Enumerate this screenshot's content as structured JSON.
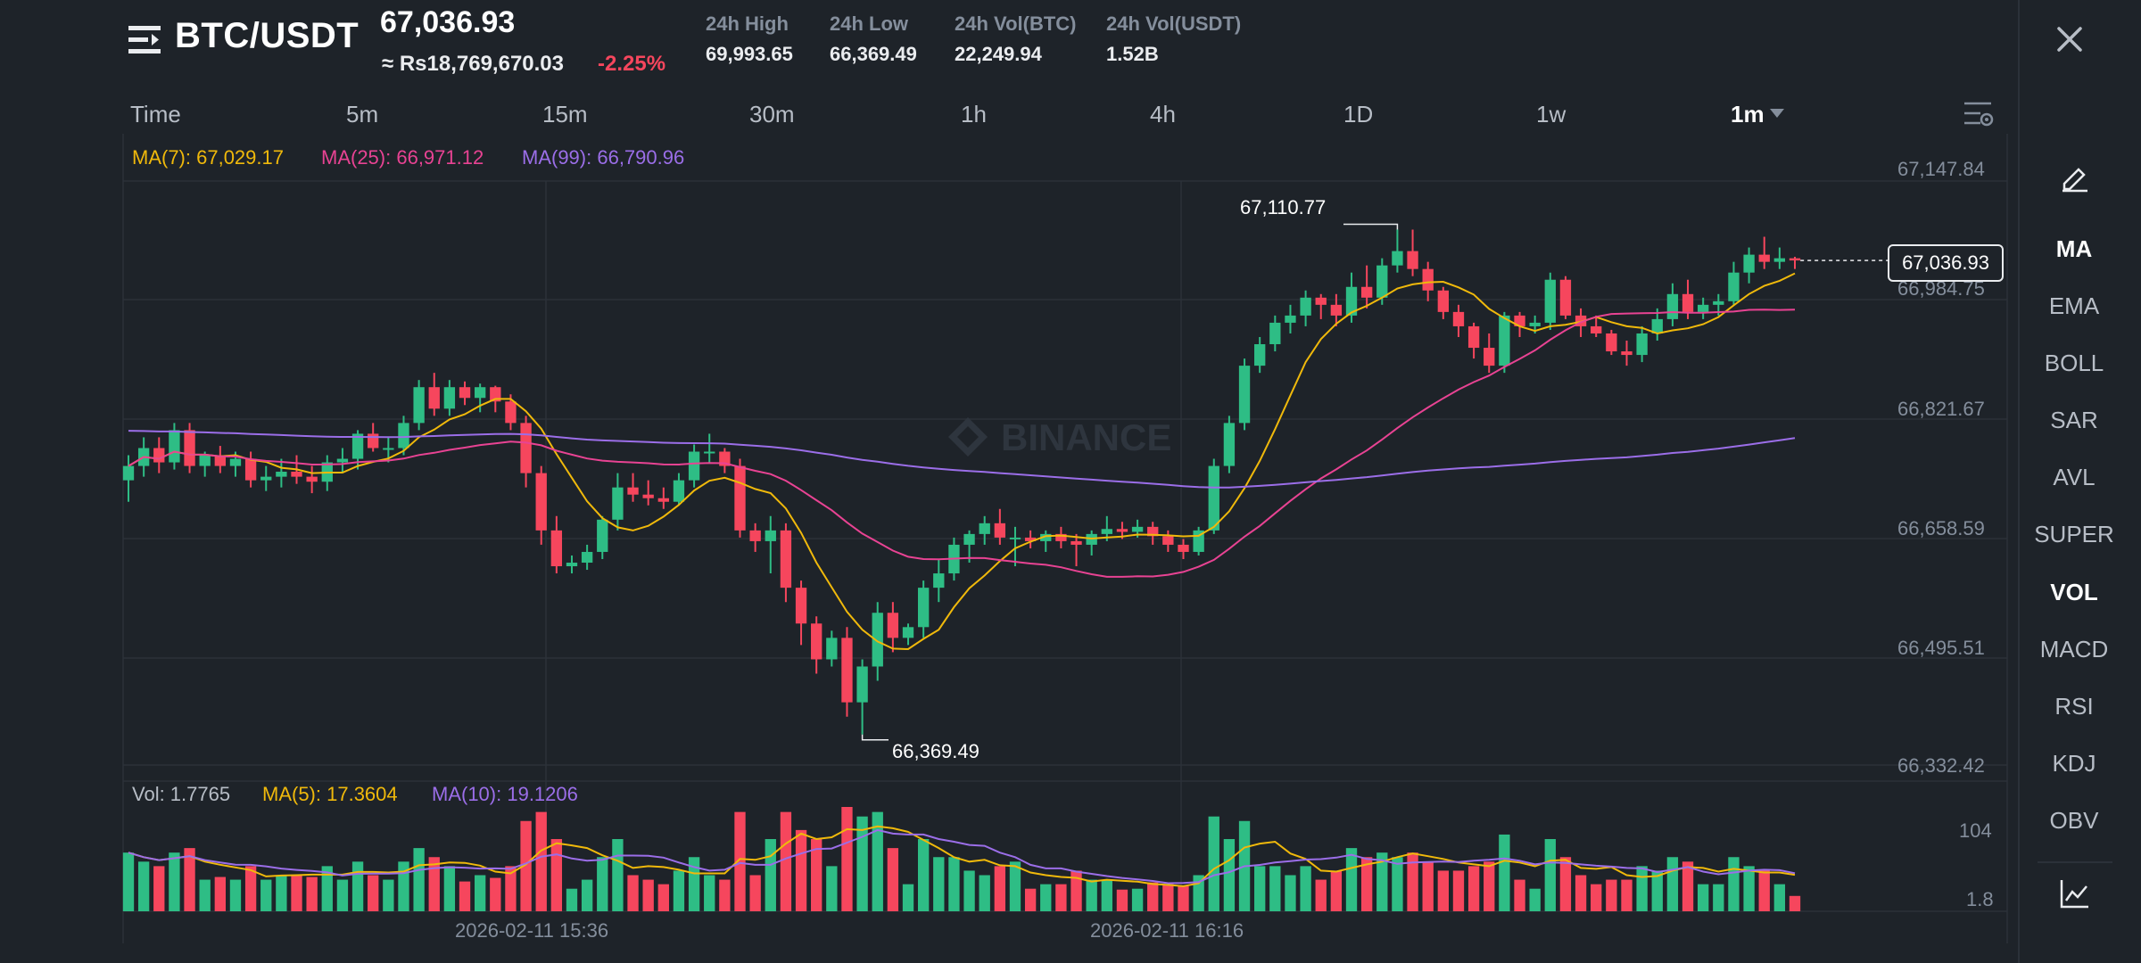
{
  "header": {
    "pair": "BTC/USDT",
    "last_price": "67,036.93",
    "fiat_price": "≈ Rs18,769,670.03",
    "change": "-2.25%",
    "stats": [
      {
        "label": "24h High",
        "value": "69,993.65"
      },
      {
        "label": "24h Low",
        "value": "66,369.49"
      },
      {
        "label": "24h Vol(BTC)",
        "value": "22,249.94"
      },
      {
        "label": "24h Vol(USDT)",
        "value": "1.52B"
      }
    ]
  },
  "timeframes": [
    "Time",
    "5m",
    "15m",
    "30m",
    "1h",
    "4h",
    "1D",
    "1w",
    "1m"
  ],
  "active_timeframe": "1m",
  "ma_legend": {
    "ma7": "MA(7): 67,029.17",
    "ma25": "MA(25): 66,971.12",
    "ma99": "MA(99): 66,790.96"
  },
  "vol_legend": {
    "vol": "Vol: 1.7765",
    "ma5": "MA(5): 17.3604",
    "ma10": "MA(10): 19.1206"
  },
  "price_axis": [
    "67,147.84",
    "66,984.75",
    "66,821.67",
    "66,658.59",
    "66,495.51",
    "66,332.42"
  ],
  "current_price_tag": "67,036.93",
  "high_marker": "67,110.77",
  "low_marker": "66,369.49",
  "vol_axis": [
    "104",
    "1.8"
  ],
  "time_axis": [
    "2026-02-11 15:36",
    "2026-02-11 16:16"
  ],
  "watermark": "BINANCE",
  "toolbar": [
    "MA",
    "EMA",
    "BOLL",
    "SAR",
    "AVL",
    "SUPER",
    "VOL",
    "MACD",
    "RSI",
    "KDJ",
    "OBV"
  ],
  "toolbar_active": [
    "MA",
    "VOL"
  ],
  "colors": {
    "up": "#2ebd85",
    "down": "#f6465d",
    "ma7": "#f0b90b",
    "ma25": "#e84393",
    "ma99": "#9b6ee8",
    "background": "#1e2329"
  },
  "chart_data": {
    "type": "candlestick",
    "interval": "1m",
    "price_range": [
      66332.42,
      67147.84
    ],
    "high_label": 67110.77,
    "low_label": 66369.49,
    "last_price": 67036.93,
    "candles_ohlc": [
      [
        66730,
        66765,
        66700,
        66750
      ],
      [
        66750,
        66790,
        66735,
        66775
      ],
      [
        66775,
        66790,
        66740,
        66755
      ],
      [
        66755,
        66810,
        66745,
        66800
      ],
      [
        66800,
        66810,
        66740,
        66750
      ],
      [
        66750,
        66770,
        66735,
        66765
      ],
      [
        66765,
        66778,
        66740,
        66750
      ],
      [
        66750,
        66770,
        66735,
        66760
      ],
      [
        66760,
        66770,
        66720,
        66730
      ],
      [
        66730,
        66750,
        66715,
        66735
      ],
      [
        66735,
        66760,
        66720,
        66742
      ],
      [
        66742,
        66765,
        66725,
        66735
      ],
      [
        66735,
        66750,
        66712,
        66728
      ],
      [
        66728,
        66765,
        66715,
        66755
      ],
      [
        66755,
        66775,
        66740,
        66760
      ],
      [
        66760,
        66800,
        66745,
        66795
      ],
      [
        66795,
        66810,
        66770,
        66775
      ],
      [
        66775,
        66790,
        66755,
        66775
      ],
      [
        66775,
        66820,
        66765,
        66810
      ],
      [
        66810,
        66870,
        66800,
        66860
      ],
      [
        66860,
        66880,
        66820,
        66830
      ],
      [
        66830,
        66870,
        66820,
        66860
      ],
      [
        66860,
        66868,
        66835,
        66845
      ],
      [
        66845,
        66865,
        66825,
        66860
      ],
      [
        66860,
        66862,
        66825,
        66840
      ],
      [
        66840,
        66850,
        66800,
        66810
      ],
      [
        66810,
        66820,
        66720,
        66740
      ],
      [
        66740,
        66750,
        66640,
        66660
      ],
      [
        66660,
        66680,
        66600,
        66610
      ],
      [
        66610,
        66625,
        66600,
        66615
      ],
      [
        66615,
        66640,
        66605,
        66630
      ],
      [
        66630,
        66680,
        66620,
        66675
      ],
      [
        66675,
        66740,
        66660,
        66720
      ],
      [
        66720,
        66740,
        66700,
        66710
      ],
      [
        66710,
        66730,
        66695,
        66705
      ],
      [
        66705,
        66720,
        66690,
        66700
      ],
      [
        66700,
        66740,
        66695,
        66730
      ],
      [
        66730,
        66780,
        66720,
        66770
      ],
      [
        66770,
        66795,
        66755,
        66770
      ],
      [
        66770,
        66775,
        66740,
        66750
      ],
      [
        66750,
        66760,
        66650,
        66660
      ],
      [
        66660,
        66670,
        66630,
        66645
      ],
      [
        66645,
        66680,
        66600,
        66660
      ],
      [
        66660,
        66670,
        66560,
        66580
      ],
      [
        66580,
        66590,
        66500,
        66530
      ],
      [
        66530,
        66540,
        66460,
        66480
      ],
      [
        66480,
        66520,
        66470,
        66510
      ],
      [
        66510,
        66525,
        66400,
        66420
      ],
      [
        66420,
        66480,
        66375,
        66470
      ],
      [
        66470,
        66560,
        66450,
        66545
      ],
      [
        66545,
        66560,
        66490,
        66510
      ],
      [
        66510,
        66530,
        66500,
        66525
      ],
      [
        66525,
        66590,
        66510,
        66580
      ],
      [
        66580,
        66620,
        66560,
        66600
      ],
      [
        66600,
        66650,
        66590,
        66640
      ],
      [
        66640,
        66660,
        66615,
        66655
      ],
      [
        66655,
        66680,
        66640,
        66670
      ],
      [
        66670,
        66690,
        66640,
        66650
      ],
      [
        66650,
        66665,
        66610,
        66650
      ],
      [
        66650,
        66660,
        66635,
        66645
      ],
      [
        66645,
        66660,
        66630,
        66655
      ],
      [
        66655,
        66665,
        66635,
        66645
      ],
      [
        66645,
        66655,
        66610,
        66640
      ],
      [
        66640,
        66660,
        66625,
        66655
      ],
      [
        66655,
        66680,
        66645,
        66662
      ],
      [
        66662,
        66672,
        66648,
        66658
      ],
      [
        66658,
        66675,
        66650,
        66665
      ],
      [
        66665,
        66672,
        66640,
        66652
      ],
      [
        66652,
        66660,
        66630,
        66640
      ],
      [
        66640,
        66648,
        66620,
        66630
      ],
      [
        66630,
        66665,
        66625,
        66660
      ],
      [
        66660,
        66760,
        66655,
        66750
      ],
      [
        66750,
        66820,
        66740,
        66810
      ],
      [
        66810,
        66900,
        66800,
        66890
      ],
      [
        66890,
        66930,
        66880,
        66920
      ],
      [
        66920,
        66960,
        66910,
        66950
      ],
      [
        66950,
        66975,
        66935,
        66960
      ],
      [
        66960,
        66995,
        66945,
        66985
      ],
      [
        66985,
        66990,
        66955,
        66975
      ],
      [
        66975,
        66990,
        66945,
        66960
      ],
      [
        66960,
        67020,
        66950,
        67000
      ],
      [
        67000,
        67030,
        66970,
        66985
      ],
      [
        66985,
        67040,
        66975,
        67030
      ],
      [
        67030,
        67080,
        67020,
        67050
      ],
      [
        67050,
        67080,
        67015,
        67025
      ],
      [
        67025,
        67035,
        66980,
        66995
      ],
      [
        66995,
        67000,
        66955,
        66965
      ],
      [
        66965,
        66975,
        66930,
        66945
      ],
      [
        66945,
        66950,
        66900,
        66915
      ],
      [
        66915,
        66935,
        66880,
        66890
      ],
      [
        66890,
        66965,
        66880,
        66960
      ],
      [
        66960,
        66965,
        66930,
        66945
      ],
      [
        66945,
        66960,
        66935,
        66950
      ],
      [
        66950,
        67020,
        66940,
        67010
      ],
      [
        67010,
        67015,
        66955,
        66960
      ],
      [
        66960,
        66970,
        66930,
        66945
      ],
      [
        66945,
        66960,
        66930,
        66935
      ],
      [
        66935,
        66940,
        66905,
        66910
      ],
      [
        66910,
        66925,
        66890,
        66905
      ],
      [
        66905,
        66945,
        66895,
        66935
      ],
      [
        66935,
        66970,
        66925,
        66955
      ],
      [
        66955,
        67005,
        66945,
        66990
      ],
      [
        66990,
        67010,
        66955,
        66965
      ],
      [
        66965,
        66985,
        66955,
        66975
      ],
      [
        66975,
        66990,
        66960,
        66980
      ],
      [
        66980,
        67035,
        66975,
        67020
      ],
      [
        67020,
        67055,
        67005,
        67045
      ],
      [
        67045,
        67070,
        67025,
        67035
      ],
      [
        67035,
        67055,
        67025,
        67040
      ],
      [
        67040,
        67042,
        67025,
        67036.93
      ]
    ],
    "ma7_last": 67029.17,
    "ma25_last": 66971.12,
    "ma99_last": 66790.96,
    "volume_range": [
      1.8,
      104
    ],
    "volume_last": 1.7765,
    "vol_ma5_last": 17.3604,
    "vol_ma10_last": 19.1206
  }
}
